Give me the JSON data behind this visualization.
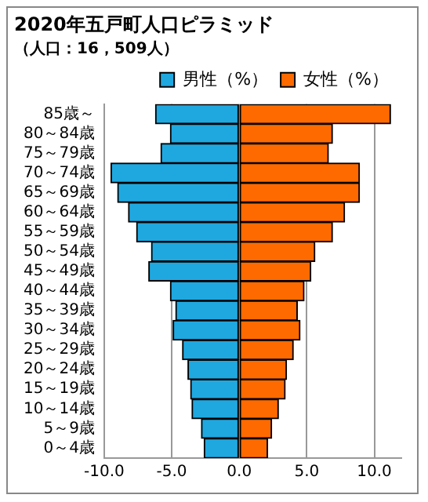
{
  "chart_data": {
    "type": "bar",
    "orientation": "horizontal",
    "stacked": true,
    "title": "2020年五戸町人口ピラミッド",
    "subtitle": "（人口：16，509人）",
    "categories": [
      "85歳～",
      "80～84歳",
      "75～79歳",
      "70～74歳",
      "65～69歳",
      "60～64歳",
      "55～59歳",
      "50～54歳",
      "45～49歳",
      "40～44歳",
      "35～39歳",
      "30～34歳",
      "25～29歳",
      "20～24歳",
      "15～19歳",
      "10～14歳",
      "5～9歳",
      "0～4歳"
    ],
    "series": [
      {
        "name": "男性（%）",
        "color": "#1fa8e0",
        "values": [
          -6.2,
          -5.1,
          -5.8,
          -9.5,
          -9.0,
          -8.2,
          -7.6,
          -6.5,
          -6.7,
          -5.1,
          -4.7,
          -4.9,
          -4.2,
          -3.8,
          -3.6,
          -3.5,
          -2.8,
          -2.6
        ]
      },
      {
        "name": "女性（%）",
        "color": "#ff6a00",
        "values": [
          11.2,
          6.9,
          6.6,
          8.9,
          8.9,
          7.8,
          6.9,
          5.6,
          5.3,
          4.8,
          4.3,
          4.5,
          4.0,
          3.5,
          3.4,
          2.9,
          2.4,
          2.1
        ]
      }
    ],
    "xlim": [
      -10,
      12
    ],
    "xticks": [
      {
        "value": -10,
        "label": "-10.0"
      },
      {
        "value": -5,
        "label": "-5.0"
      },
      {
        "value": 0,
        "label": "0.0"
      },
      {
        "value": 5,
        "label": "5.0"
      },
      {
        "value": 10,
        "label": "10.0"
      }
    ],
    "grid": "x",
    "legend": "top right"
  }
}
